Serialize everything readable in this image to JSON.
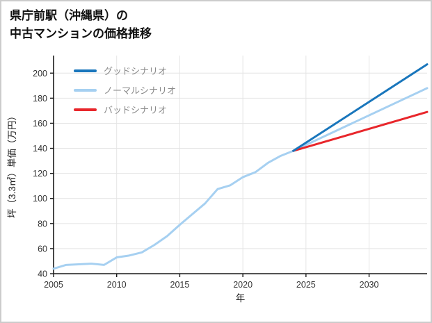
{
  "page": {
    "title_line1": "県庁前駅（沖縄県）の",
    "title_line2": "中古マンションの価格推移"
  },
  "chart_data": {
    "type": "line",
    "title": "県庁前駅（沖縄県）の中古マンションの価格推移",
    "xlabel": "年",
    "ylabel": "坪（3.3㎡）単価（万円）",
    "xlim": [
      2005,
      2034.6
    ],
    "ylim": [
      40,
      214
    ],
    "x_ticks": [
      2005,
      2010,
      2015,
      2020,
      2025,
      2030
    ],
    "y_ticks": [
      40,
      60,
      80,
      100,
      120,
      140,
      160,
      180,
      200
    ],
    "grid": true,
    "legend_position": "top-left",
    "axis_color": "#1a1a1a",
    "grid_color": "#e4e4e4",
    "series": [
      {
        "name": "グッドシナリオ",
        "color": "#1976bc",
        "x": [
          2024,
          2034.6
        ],
        "y": [
          138,
          207
        ]
      },
      {
        "name": "ノーマルシナリオ",
        "color": "#a6d0f1",
        "x": [
          2005,
          2006,
          2007,
          2008,
          2009,
          2010,
          2011,
          2012,
          2013,
          2014,
          2015,
          2016,
          2017,
          2018,
          2019,
          2020,
          2021,
          2022,
          2023,
          2024,
          2034.6
        ],
        "y": [
          44,
          47,
          47.5,
          48,
          47,
          53,
          54.5,
          57,
          63,
          70,
          79,
          87.5,
          96,
          107.5,
          110.5,
          117,
          121,
          128.5,
          134,
          138,
          188
        ]
      },
      {
        "name": "バッドシナリオ",
        "color": "#e8262b",
        "x": [
          2024,
          2034.6
        ],
        "y": [
          138,
          169
        ]
      }
    ]
  }
}
